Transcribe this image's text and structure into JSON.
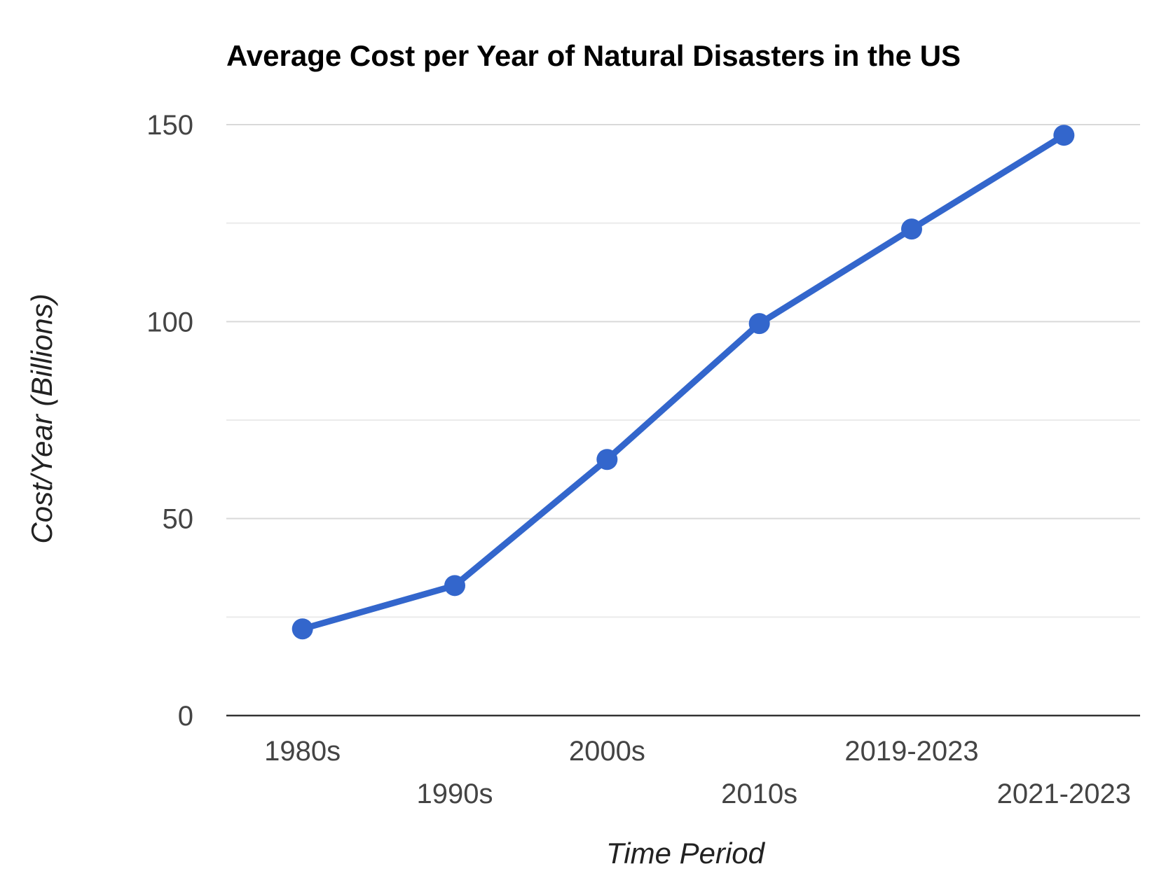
{
  "chart_data": {
    "type": "line",
    "title": "Average Cost per Year of Natural Disasters in the US",
    "xlabel": "Time Period",
    "ylabel": "Cost/Year (Billions)",
    "categories": [
      "1980s",
      "1990s",
      "2000s",
      "2010s",
      "2019-2023",
      "2021-2023"
    ],
    "series": [
      {
        "values": [
          22,
          33,
          65,
          99.5,
          123.5,
          147.3
        ]
      }
    ],
    "ylim": [
      0,
      150
    ],
    "yticks": [
      0,
      50,
      100,
      150
    ],
    "grid": true,
    "colors": {
      "line": "#3366cc",
      "grid": "#d9d9d9",
      "baseline": "#333333"
    }
  }
}
